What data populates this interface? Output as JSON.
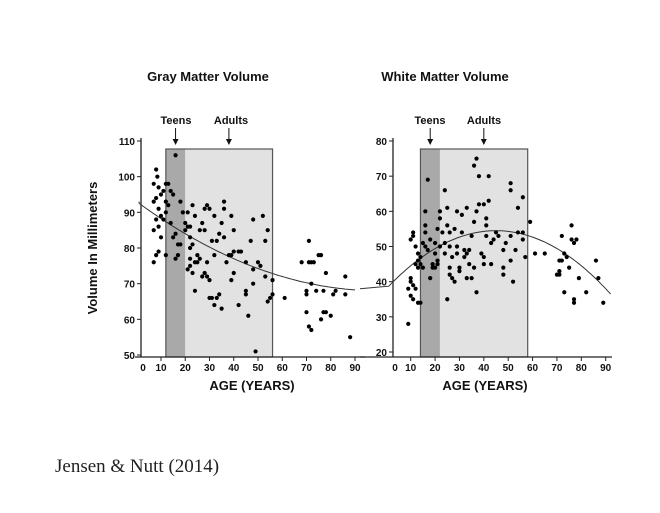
{
  "citation": "Jensen & Nutt (2014)",
  "chart_data": [
    {
      "type": "scatter",
      "title": "Gray Matter Volume",
      "xlabel": "AGE (YEARS)",
      "ylabel": "Volume In Millimeters",
      "xticks": [
        "0",
        "10",
        "20",
        "30",
        "40",
        "50",
        "60",
        "70",
        "80",
        "90"
      ],
      "yticks": [
        "50",
        "60",
        "70",
        "80",
        "90",
        "100",
        "110"
      ],
      "xlim": [
        0,
        90
      ],
      "ylim": [
        50,
        110
      ],
      "annotations": [
        {
          "label": "Teens",
          "age": 16
        },
        {
          "label": "Adults",
          "age": 38
        }
      ],
      "regions": {
        "teens": [
          12,
          20
        ],
        "adults": [
          20,
          56
        ]
      },
      "trend": {
        "type": "quadratic",
        "coeffs": [
          93,
          -0.5,
          0.0025
        ]
      },
      "colors": {
        "teens": "#a9a9a9",
        "adults": "#e2e2e2",
        "points": "#000000"
      },
      "points": [
        [
          16,
          106
        ],
        [
          8,
          102
        ],
        [
          8.5,
          100
        ],
        [
          7,
          98
        ],
        [
          9,
          97
        ],
        [
          12,
          98
        ],
        [
          13,
          98
        ],
        [
          11,
          96
        ],
        [
          14,
          96
        ],
        [
          8,
          94
        ],
        [
          10,
          95
        ],
        [
          7,
          93
        ],
        [
          12,
          93
        ],
        [
          15,
          95
        ],
        [
          9,
          91
        ],
        [
          13,
          92
        ],
        [
          10,
          89
        ],
        [
          8,
          88
        ],
        [
          11,
          88
        ],
        [
          12,
          90
        ],
        [
          7,
          85
        ],
        [
          9,
          86
        ],
        [
          14,
          87
        ],
        [
          10,
          83
        ],
        [
          8,
          78
        ],
        [
          7,
          76
        ],
        [
          12,
          78
        ],
        [
          9,
          79
        ],
        [
          16,
          77
        ],
        [
          17,
          78
        ],
        [
          16,
          84
        ],
        [
          15,
          83
        ],
        [
          17,
          81
        ],
        [
          18,
          81
        ],
        [
          20,
          87
        ],
        [
          21,
          86
        ],
        [
          22,
          86
        ],
        [
          18,
          93
        ],
        [
          19,
          90
        ],
        [
          21,
          90
        ],
        [
          20,
          85
        ],
        [
          22,
          83
        ],
        [
          22,
          80
        ],
        [
          23,
          81
        ],
        [
          22,
          77
        ],
        [
          21,
          74
        ],
        [
          22,
          75
        ],
        [
          23,
          73
        ],
        [
          24,
          76
        ],
        [
          25,
          78
        ],
        [
          26,
          77
        ],
        [
          24,
          68
        ],
        [
          25,
          76
        ],
        [
          23,
          92
        ],
        [
          24,
          89
        ],
        [
          26,
          85
        ],
        [
          27,
          87
        ],
        [
          28,
          91
        ],
        [
          29,
          92
        ],
        [
          30,
          91
        ],
        [
          28,
          85
        ],
        [
          27,
          72
        ],
        [
          28,
          73
        ],
        [
          29,
          76
        ],
        [
          29,
          72
        ],
        [
          30,
          71
        ],
        [
          31,
          82
        ],
        [
          32,
          89
        ],
        [
          33,
          82
        ],
        [
          32,
          78
        ],
        [
          30,
          66
        ],
        [
          31,
          66
        ],
        [
          32,
          64
        ],
        [
          33,
          66
        ],
        [
          34,
          67
        ],
        [
          35,
          63
        ],
        [
          34,
          84
        ],
        [
          35,
          87
        ],
        [
          36,
          83
        ],
        [
          36,
          93
        ],
        [
          36,
          91
        ],
        [
          37,
          76
        ],
        [
          38,
          78
        ],
        [
          39,
          78
        ],
        [
          40,
          79
        ],
        [
          39,
          71
        ],
        [
          40,
          73
        ],
        [
          39,
          89
        ],
        [
          40,
          85
        ],
        [
          42,
          79
        ],
        [
          43,
          79
        ],
        [
          42,
          64
        ],
        [
          45,
          76
        ],
        [
          45,
          68
        ],
        [
          45,
          67
        ],
        [
          46,
          61
        ],
        [
          47,
          82
        ],
        [
          48,
          88
        ],
        [
          48,
          74
        ],
        [
          48,
          70
        ],
        [
          49,
          51
        ],
        [
          50,
          76
        ],
        [
          51,
          75
        ],
        [
          52,
          89
        ],
        [
          53,
          72
        ],
        [
          53,
          82
        ],
        [
          54,
          85
        ],
        [
          54,
          65
        ],
        [
          55,
          66
        ],
        [
          56,
          71
        ],
        [
          56,
          67
        ],
        [
          61,
          66
        ],
        [
          68,
          76
        ],
        [
          70,
          68
        ],
        [
          70,
          67
        ],
        [
          70,
          62
        ],
        [
          71,
          76
        ],
        [
          72,
          76
        ],
        [
          71,
          82
        ],
        [
          72,
          70
        ],
        [
          71,
          58
        ],
        [
          72,
          57
        ],
        [
          73,
          76
        ],
        [
          74,
          68
        ],
        [
          75,
          78
        ],
        [
          76,
          78
        ],
        [
          76,
          60
        ],
        [
          77,
          68
        ],
        [
          77,
          62
        ],
        [
          78,
          73
        ],
        [
          78,
          62
        ],
        [
          80,
          61
        ],
        [
          81,
          67
        ],
        [
          82,
          68
        ],
        [
          86,
          72
        ],
        [
          86,
          67
        ],
        [
          88,
          55
        ]
      ]
    },
    {
      "type": "scatter",
      "title": "White Matter Volume",
      "xlabel": "AGE (YEARS)",
      "ylabel": "",
      "xticks": [
        "0",
        "10",
        "20",
        "30",
        "40",
        "50",
        "60",
        "70",
        "80",
        "90"
      ],
      "yticks": [
        "20",
        "30",
        "40",
        "50",
        "60",
        "70",
        "80"
      ],
      "xlim": [
        0,
        90
      ],
      "ylim": [
        20,
        80
      ],
      "annotations": [
        {
          "label": "Teens",
          "age": 18
        },
        {
          "label": "Adults",
          "age": 40
        }
      ],
      "regions": {
        "teens": [
          14,
          22
        ],
        "adults": [
          22,
          58
        ]
      },
      "trend": {
        "type": "quadratic",
        "peak_age": 45,
        "peak_value": 54.5,
        "k": 0.00815
      },
      "colors": {
        "teens": "#a9a9a9",
        "adults": "#e2e2e2",
        "points": "#000000"
      },
      "points": [
        [
          9,
          38
        ],
        [
          10,
          36
        ],
        [
          10,
          40
        ],
        [
          11,
          35
        ],
        [
          10,
          41
        ],
        [
          11,
          39
        ],
        [
          12,
          38
        ],
        [
          13,
          34
        ],
        [
          14,
          34
        ],
        [
          10,
          52
        ],
        [
          11,
          54
        ],
        [
          11,
          53
        ],
        [
          12,
          50
        ],
        [
          13,
          48
        ],
        [
          12,
          45
        ],
        [
          13,
          44
        ],
        [
          14,
          45
        ],
        [
          15,
          44
        ],
        [
          13,
          46
        ],
        [
          14,
          47
        ],
        [
          15,
          51
        ],
        [
          16,
          50
        ],
        [
          16,
          54
        ],
        [
          16,
          56
        ],
        [
          16,
          60
        ],
        [
          9,
          28
        ],
        [
          17,
          49
        ],
        [
          18,
          52
        ],
        [
          19,
          45
        ],
        [
          19,
          44
        ],
        [
          20,
          44
        ],
        [
          21,
          45
        ],
        [
          20,
          48
        ],
        [
          21,
          46
        ],
        [
          22,
          50
        ],
        [
          18,
          41
        ],
        [
          17,
          69
        ],
        [
          20,
          51
        ],
        [
          21,
          55
        ],
        [
          22,
          58
        ],
        [
          22,
          60
        ],
        [
          23,
          54
        ],
        [
          24,
          51
        ],
        [
          24,
          48
        ],
        [
          24,
          66
        ],
        [
          25,
          56
        ],
        [
          25,
          61
        ],
        [
          26,
          54
        ],
        [
          26,
          50
        ],
        [
          26,
          44
        ],
        [
          26,
          42
        ],
        [
          25,
          35
        ],
        [
          27,
          41
        ],
        [
          27,
          47
        ],
        [
          28,
          40
        ],
        [
          28,
          55
        ],
        [
          29,
          60
        ],
        [
          29,
          50
        ],
        [
          29,
          48
        ],
        [
          30,
          44
        ],
        [
          30,
          43
        ],
        [
          31,
          54
        ],
        [
          31,
          59
        ],
        [
          32,
          49
        ],
        [
          32,
          47
        ],
        [
          33,
          48
        ],
        [
          33,
          41
        ],
        [
          33,
          61
        ],
        [
          34,
          45
        ],
        [
          34,
          49
        ],
        [
          35,
          53
        ],
        [
          35,
          41
        ],
        [
          36,
          44
        ],
        [
          36,
          57
        ],
        [
          37,
          60
        ],
        [
          36,
          73
        ],
        [
          37,
          75
        ],
        [
          37,
          37
        ],
        [
          38,
          70
        ],
        [
          38,
          62
        ],
        [
          39,
          48
        ],
        [
          40,
          47
        ],
        [
          40,
          45
        ],
        [
          40,
          62
        ],
        [
          41,
          53
        ],
        [
          41,
          58
        ],
        [
          41,
          56
        ],
        [
          42,
          63
        ],
        [
          42,
          70
        ],
        [
          43,
          51
        ],
        [
          43,
          45
        ],
        [
          44,
          52
        ],
        [
          45,
          54
        ],
        [
          46,
          53
        ],
        [
          48,
          49
        ],
        [
          48,
          44
        ],
        [
          48,
          42
        ],
        [
          49,
          51
        ],
        [
          51,
          68
        ],
        [
          51,
          66
        ],
        [
          51,
          53
        ],
        [
          51,
          46
        ],
        [
          52,
          40
        ],
        [
          53,
          49
        ],
        [
          54,
          61
        ],
        [
          54,
          54
        ],
        [
          56,
          64
        ],
        [
          56,
          52
        ],
        [
          56,
          54
        ],
        [
          57,
          47
        ],
        [
          59,
          57
        ],
        [
          61,
          48
        ],
        [
          65,
          48
        ],
        [
          70,
          42
        ],
        [
          71,
          46
        ],
        [
          71,
          43
        ],
        [
          71,
          42
        ],
        [
          72,
          46
        ],
        [
          72,
          53
        ],
        [
          73,
          48
        ],
        [
          73,
          37
        ],
        [
          74,
          47
        ],
        [
          75,
          44
        ],
        [
          76,
          52
        ],
        [
          76,
          56
        ],
        [
          77,
          51
        ],
        [
          78,
          52
        ],
        [
          77,
          35
        ],
        [
          77,
          34
        ],
        [
          79,
          41
        ],
        [
          82,
          37
        ],
        [
          86,
          46
        ],
        [
          87,
          41
        ],
        [
          89,
          34
        ]
      ]
    }
  ]
}
